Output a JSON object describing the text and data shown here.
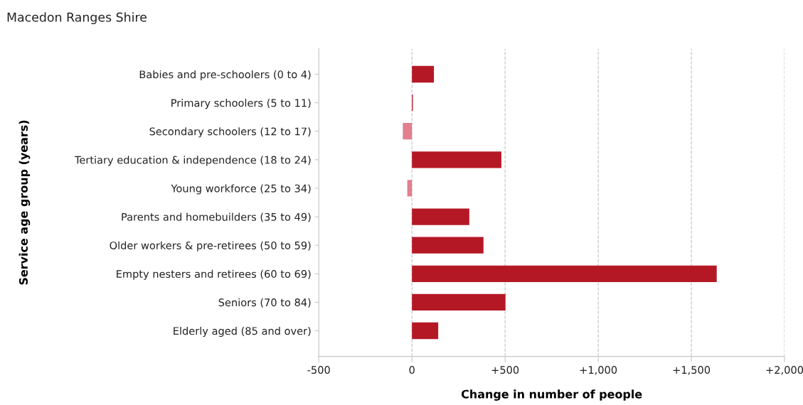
{
  "chart_data": {
    "type": "bar",
    "orientation": "horizontal",
    "title": "Macedon Ranges Shire",
    "xlabel": "Change in number of people",
    "ylabel": "Service age group (years)",
    "categories": [
      "Babies and pre-schoolers (0 to 4)",
      "Primary schoolers (5 to 11)",
      "Secondary schoolers (12 to 17)",
      "Tertiary education & independence (18 to 24)",
      "Young workforce (25 to 34)",
      "Parents and homebuilders (35 to 49)",
      "Older workers & pre-retirees (50 to 59)",
      "Empty nesters and retirees (60 to 69)",
      "Seniors (70 to 84)",
      "Elderly aged (85 and over)"
    ],
    "values": [
      118,
      5,
      -49,
      480,
      -25,
      308,
      384,
      1636,
      502,
      141
    ],
    "colors": [
      "#b51825",
      "#b51825",
      "#e08090",
      "#b51825",
      "#e08090",
      "#b51825",
      "#b51825",
      "#b51825",
      "#b51825",
      "#b51825"
    ],
    "xlim": [
      -500,
      2000
    ],
    "xticks": [
      {
        "value": -500,
        "label": "-500"
      },
      0,
      {
        "value": 500,
        "label": "+500"
      },
      {
        "value": 1000,
        "label": "+1,000"
      },
      {
        "value": 1500,
        "label": "+1,500"
      },
      {
        "value": 2000,
        "label": "+2,000"
      }
    ],
    "grid": "x",
    "line_style": "dashed",
    "legend": false
  }
}
